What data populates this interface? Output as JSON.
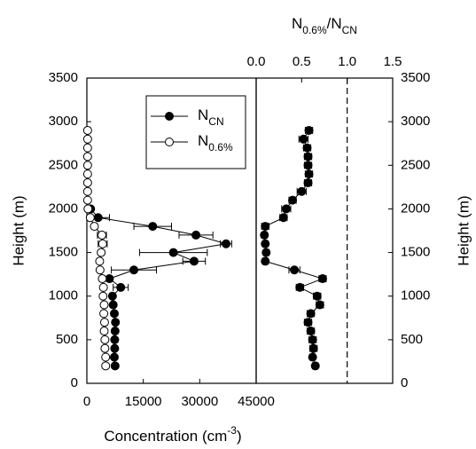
{
  "chart_data": [
    {
      "type": "scatter",
      "xlabel_parts": [
        {
          "text": "Concentration (cm"
        },
        {
          "text": "-3",
          "sup": true
        },
        {
          "text": ")"
        }
      ],
      "ylabel": "Height (m)",
      "xlim": [
        0,
        45000
      ],
      "xticks": [
        0,
        15000,
        30000,
        45000
      ],
      "ylim": [
        0,
        3500
      ],
      "yticks": [
        0,
        500,
        1000,
        1500,
        2000,
        2500,
        3000,
        3500
      ],
      "legend": "upper right",
      "series": [
        {
          "name": "N",
          "subscript": "CN",
          "color": "#000000",
          "filled": true,
          "line": true,
          "y": [
            200,
            300,
            400,
            500,
            600,
            700,
            800,
            900,
            1000,
            1100,
            1200,
            1300,
            1400,
            1500,
            1600,
            1700,
            1800,
            1900,
            2000
          ],
          "x": [
            7500,
            7300,
            7400,
            7400,
            7500,
            7600,
            7300,
            7000,
            6800,
            9000,
            6000,
            12500,
            28500,
            23000,
            37000,
            29000,
            17500,
            3000,
            1000
          ],
          "xerr": [
            null,
            null,
            null,
            null,
            null,
            null,
            null,
            null,
            null,
            2000,
            null,
            6000,
            3000,
            9000,
            1500,
            4500,
            5000,
            3000,
            null
          ]
        },
        {
          "name": "N",
          "subscript": "0.6%",
          "color": "#000000",
          "filled": false,
          "line": true,
          "y": [
            200,
            300,
            400,
            500,
            600,
            700,
            800,
            900,
            1000,
            1100,
            1200,
            1300,
            1400,
            1500,
            1600,
            1700,
            1800,
            1900,
            2000,
            2100,
            2200,
            2300,
            2400,
            2500,
            2600,
            2700,
            2800,
            2900
          ],
          "x": [
            5000,
            5000,
            4800,
            4800,
            4600,
            4700,
            4500,
            4600,
            4300,
            4400,
            4100,
            3500,
            3400,
            3800,
            4200,
            4000,
            2000,
            900,
            300,
            200,
            200,
            200,
            200,
            200,
            200,
            200,
            200,
            200
          ],
          "xerr": [
            null,
            null,
            null,
            null,
            null,
            null,
            null,
            null,
            null,
            null,
            null,
            null,
            null,
            null,
            1200,
            1200,
            null,
            null,
            null,
            null,
            null,
            null,
            null,
            null,
            null,
            null,
            null,
            null
          ]
        }
      ]
    },
    {
      "type": "scatter",
      "xlabel_parts": [
        {
          "text": "N"
        },
        {
          "text": "0.6%",
          "sub": true
        },
        {
          "text": "/N"
        },
        {
          "text": "CN",
          "sub": true
        }
      ],
      "ylabel": "Height (m)",
      "xlim": [
        0,
        1.5
      ],
      "xticks": [
        {
          "value": 0,
          "label": "0.0"
        },
        0.5,
        {
          "value": 1,
          "label": "1.0"
        },
        1.5
      ],
      "ylim": [
        0,
        3500
      ],
      "yticks": [
        0,
        500,
        1000,
        1500,
        2000,
        2500,
        3000,
        3500
      ],
      "vline": 1,
      "series": [
        {
          "color": "#000000",
          "filled": true,
          "line": true,
          "y": [
            200,
            300,
            400,
            500,
            600,
            700,
            800,
            900,
            1000,
            1100,
            1200,
            1300,
            1400,
            1500,
            1600,
            1700,
            1800,
            1900,
            2000,
            2100,
            2200,
            2300,
            2400,
            2500,
            2600,
            2700,
            2800,
            2900
          ],
          "x": [
            0.65,
            0.62,
            0.63,
            0.62,
            0.6,
            0.57,
            0.6,
            0.7,
            0.67,
            0.48,
            0.73,
            0.42,
            0.1,
            0.11,
            0.1,
            0.09,
            0.1,
            0.3,
            0.33,
            0.4,
            0.5,
            0.57,
            0.58,
            0.57,
            0.57,
            0.56,
            0.52,
            0.58
          ],
          "xerr": [
            0.03,
            0.03,
            0.04,
            0.04,
            0.04,
            0.04,
            0.04,
            0.04,
            0.04,
            0.04,
            0.04,
            0.06,
            0.03,
            0.03,
            0.03,
            0.03,
            0.04,
            0.04,
            0.05,
            0.04,
            0.05,
            0.04,
            0.04,
            0.04,
            0.04,
            0.04,
            0.05,
            0.04
          ]
        }
      ]
    }
  ]
}
